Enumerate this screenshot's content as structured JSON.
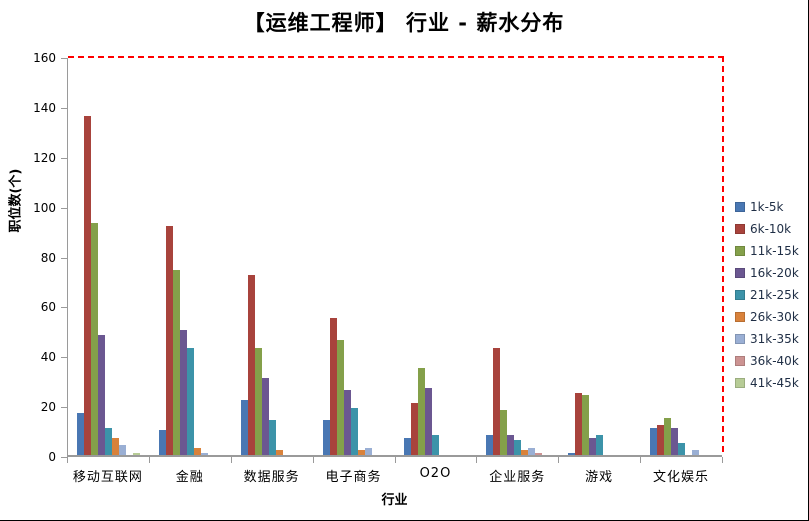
{
  "chart_data": {
    "type": "bar",
    "title": "【运维工程师】 行业 - 薪水分布",
    "xlabel": "行业",
    "ylabel": "职位数(个)",
    "ylim": [
      0,
      160
    ],
    "yticks": [
      0,
      20,
      40,
      60,
      80,
      100,
      120,
      140,
      160
    ],
    "grid": false,
    "legend_position": "right",
    "plot_border_style": "top and right red dashed",
    "categories": [
      "移动互联网",
      "金融",
      "数据服务",
      "电子商务",
      "O2O",
      "企业服务",
      "游戏",
      "文化娱乐"
    ],
    "series": [
      {
        "name": "1k-5k",
        "color": "#4977B3",
        "values": [
          17,
          10,
          22,
          14,
          7,
          8,
          1,
          11
        ]
      },
      {
        "name": "6k-10k",
        "color": "#A8433C",
        "values": [
          136,
          92,
          72,
          55,
          21,
          43,
          25,
          12
        ]
      },
      {
        "name": "11k-15k",
        "color": "#84A04A",
        "values": [
          93,
          74,
          43,
          46,
          35,
          18,
          24,
          15
        ]
      },
      {
        "name": "16k-20k",
        "color": "#6B5791",
        "values": [
          48,
          50,
          31,
          26,
          27,
          8,
          7,
          11
        ]
      },
      {
        "name": "21k-25k",
        "color": "#3C93A9",
        "values": [
          11,
          43,
          14,
          19,
          8,
          6,
          8,
          5
        ]
      },
      {
        "name": "26k-30k",
        "color": "#D9823B",
        "values": [
          7,
          3,
          2,
          2,
          0,
          2,
          0,
          0
        ]
      },
      {
        "name": "31k-35k",
        "color": "#9AAFD4",
        "values": [
          4,
          1,
          0,
          3,
          0,
          3,
          0,
          2
        ]
      },
      {
        "name": "36k-40k",
        "color": "#CC9392",
        "values": [
          0,
          0,
          0,
          0,
          0,
          1,
          0,
          0
        ]
      },
      {
        "name": "41k-45k",
        "color": "#B7CC96",
        "values": [
          1,
          0,
          0,
          0,
          0,
          0,
          0,
          0
        ]
      }
    ]
  }
}
